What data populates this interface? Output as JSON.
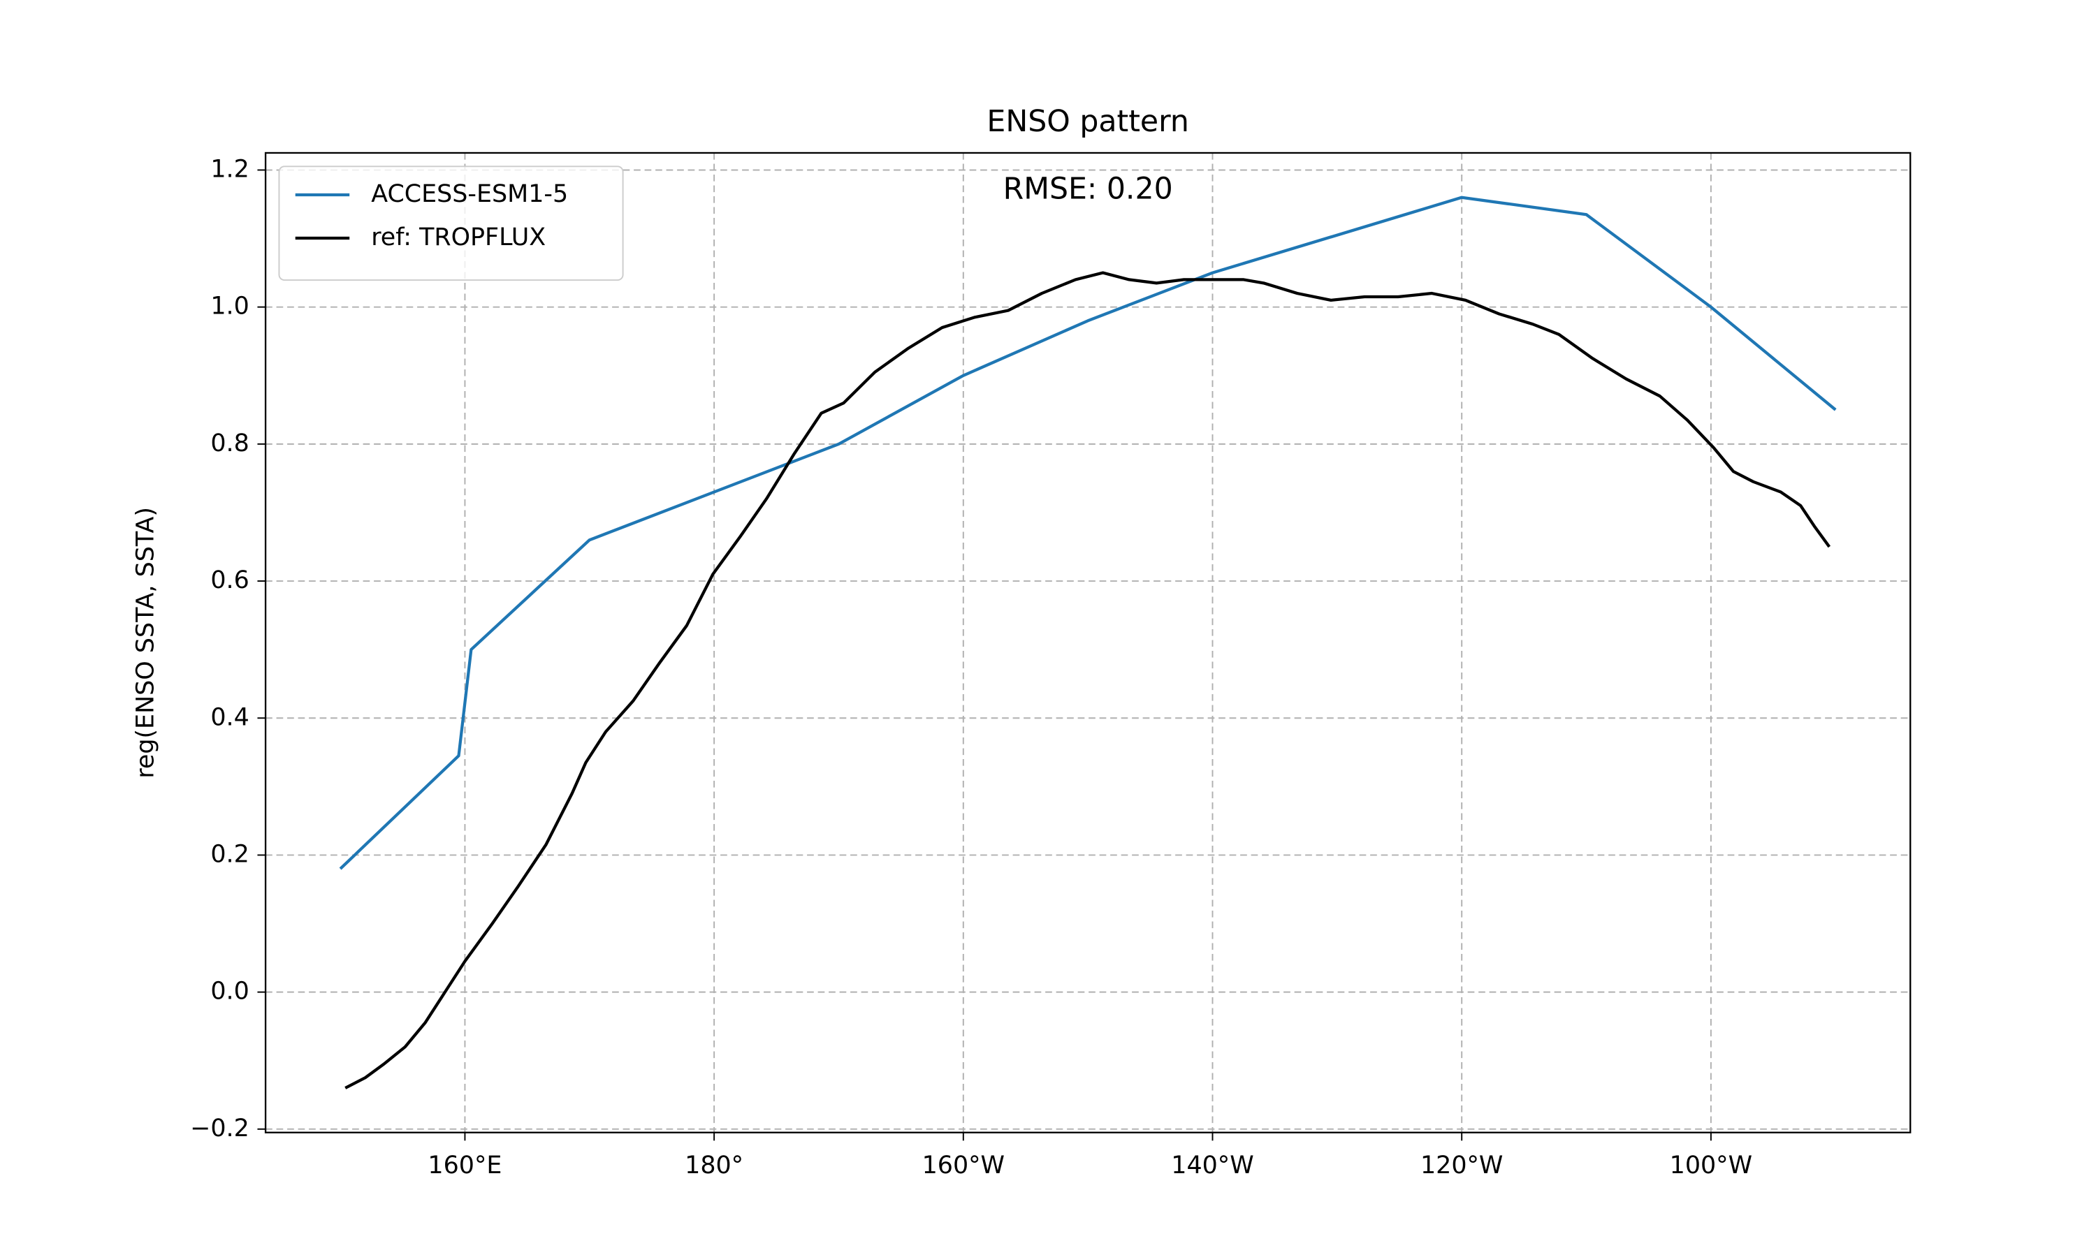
{
  "chart_data": {
    "type": "line",
    "title": "ENSO pattern",
    "annotation": "RMSE: 0.20",
    "y_label": "reg(ENSO SSTA, SSTA)",
    "xlim": [
      144,
      276
    ],
    "ylim": [
      -0.205,
      1.225
    ],
    "xticks": [
      {
        "value": 160,
        "label": "160°E"
      },
      {
        "value": 180,
        "label": "180°"
      },
      {
        "value": 200,
        "label": "160°W"
      },
      {
        "value": 220,
        "label": "140°W"
      },
      {
        "value": 240,
        "label": "120°W"
      },
      {
        "value": 260,
        "label": "100°W"
      }
    ],
    "yticks": [
      {
        "value": -0.2,
        "label": "−0.2"
      },
      {
        "value": 0,
        "label": "0.0"
      },
      0.2,
      0.4,
      0.6,
      0.8,
      {
        "value": 1,
        "label": "1.0"
      },
      1.2
    ],
    "grid": true,
    "legend": "upper left",
    "series": [
      {
        "name": "ACCESS-ESM1-5",
        "color": "#1f77b4",
        "x": [
          150,
          159.5,
          160.5,
          170,
          190,
          200,
          210,
          220,
          240,
          250,
          260,
          270
        ],
        "values": [
          0.18,
          0.345,
          0.5,
          0.66,
          0.8,
          0.9,
          0.98,
          1.05,
          1.16,
          1.135,
          1.0,
          0.85
        ]
      },
      {
        "name": "ref: TROPFLUX",
        "color": "#000000",
        "x": [
          150.4,
          152,
          153.5,
          155.2,
          156.8,
          158.4,
          160,
          162.2,
          164.3,
          166.5,
          168.6,
          169.7,
          171.3,
          173.5,
          175.6,
          177.8,
          179.9,
          182.1,
          184.2,
          186.4,
          188.6,
          190.4,
          192.9,
          195.6,
          198.3,
          200.9,
          203.6,
          206.3,
          209,
          211.2,
          213.3,
          215.5,
          217.7,
          219.8,
          222.5,
          224.1,
          226.8,
          229.5,
          232.2,
          234.9,
          237.6,
          240.3,
          243,
          245.7,
          247.8,
          250.5,
          253.2,
          255.9,
          258.1,
          260.2,
          261.8,
          263.4,
          265.6,
          267.2,
          268.3,
          269.5
        ],
        "values": [
          -0.14,
          -0.125,
          -0.105,
          -0.08,
          -0.045,
          0.0,
          0.045,
          0.1,
          0.155,
          0.215,
          0.29,
          0.335,
          0.38,
          0.425,
          0.48,
          0.535,
          0.61,
          0.665,
          0.72,
          0.785,
          0.845,
          0.86,
          0.905,
          0.94,
          0.97,
          0.985,
          0.995,
          1.02,
          1.04,
          1.05,
          1.04,
          1.035,
          1.04,
          1.04,
          1.04,
          1.035,
          1.02,
          1.01,
          1.015,
          1.015,
          1.02,
          1.01,
          0.99,
          0.975,
          0.96,
          0.925,
          0.895,
          0.87,
          0.835,
          0.795,
          0.76,
          0.745,
          0.73,
          0.71,
          0.68,
          0.65
        ]
      }
    ]
  }
}
